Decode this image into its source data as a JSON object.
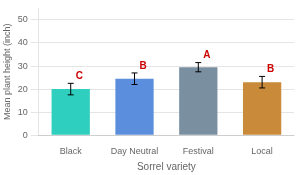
{
  "chart_data": {
    "type": "bar",
    "categories": [
      "Black",
      "Day Neutral",
      "Festival",
      "Local"
    ],
    "values": [
      20.0,
      24.5,
      29.5,
      23.0
    ],
    "errors": [
      2.5,
      2.5,
      2.0,
      2.5
    ],
    "colors": [
      "#2ecfbe",
      "#5b8fde",
      "#7a8fa0",
      "#c98a3a"
    ],
    "annotations": [
      {
        "text": "C",
        "color": "#cc0000"
      },
      {
        "text": "B",
        "color": "#cc0000"
      },
      {
        "text": "A",
        "color": "#cc0000"
      },
      {
        "text": "B",
        "color": "#cc0000"
      }
    ],
    "xlabel": "Sorrel variety",
    "ylabel": "Mean plant height (inch)",
    "ylim": [
      0,
      55
    ],
    "yticks": [
      0,
      10,
      20,
      30,
      40,
      50
    ],
    "grid": true
  }
}
